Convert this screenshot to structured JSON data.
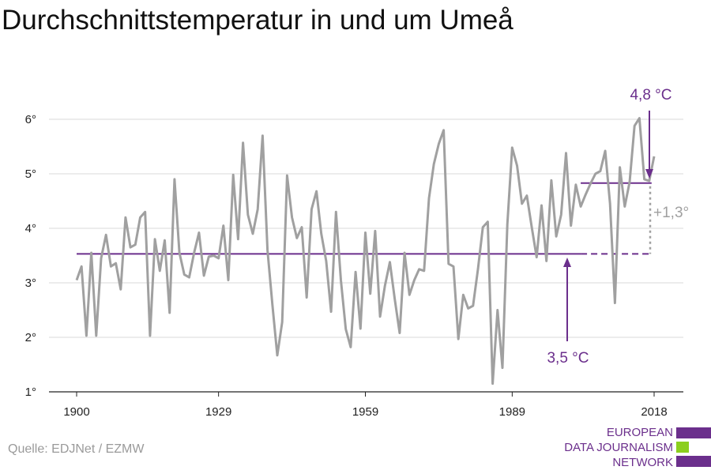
{
  "title": "Durchschnittstemperatur in und um Umeå",
  "source": "Quelle: EDJNet / EZMW",
  "logo": {
    "line1": "EUROPEAN",
    "line2": "DATA JOURNALISM",
    "line3": "NETWORK",
    "purple": "#6b2f8c",
    "green": "#8ccf1e"
  },
  "colors": {
    "series": "#a0a0a0",
    "accent": "#6b2f8c",
    "diff": "#a0a0a0",
    "grid": "#d8d8d8"
  },
  "chart_data": {
    "type": "line",
    "title": "Durchschnittstemperatur in und um Umeå",
    "xlabel": "",
    "ylabel": "",
    "xlim": [
      1900,
      2018
    ],
    "ylim": [
      1,
      6
    ],
    "x_ticks": [
      1900,
      1929,
      1959,
      1989,
      2018
    ],
    "y_ticks": [
      1,
      2,
      3,
      4,
      5,
      6
    ],
    "y_tick_labels": [
      "1°",
      "2°",
      "3°",
      "4°",
      "5°",
      "6°"
    ],
    "grid": "horizontal",
    "x": [
      1900,
      1901,
      1902,
      1903,
      1904,
      1905,
      1906,
      1907,
      1908,
      1909,
      1910,
      1911,
      1912,
      1913,
      1914,
      1915,
      1916,
      1917,
      1918,
      1919,
      1920,
      1921,
      1922,
      1923,
      1924,
      1925,
      1926,
      1927,
      1928,
      1929,
      1930,
      1931,
      1932,
      1933,
      1934,
      1935,
      1936,
      1937,
      1938,
      1939,
      1940,
      1941,
      1942,
      1943,
      1944,
      1945,
      1946,
      1947,
      1948,
      1949,
      1950,
      1951,
      1952,
      1953,
      1954,
      1955,
      1956,
      1957,
      1958,
      1959,
      1960,
      1961,
      1962,
      1963,
      1964,
      1965,
      1966,
      1967,
      1968,
      1969,
      1970,
      1971,
      1972,
      1973,
      1974,
      1975,
      1976,
      1977,
      1978,
      1979,
      1980,
      1981,
      1982,
      1983,
      1984,
      1985,
      1986,
      1987,
      1988,
      1989,
      1990,
      1991,
      1992,
      1993,
      1994,
      1995,
      1996,
      1997,
      1998,
      1999,
      2000,
      2001,
      2002,
      2003,
      2004,
      2005,
      2006,
      2007,
      2008,
      2009,
      2010,
      2011,
      2012,
      2013,
      2014,
      2015,
      2016,
      2017,
      2018
    ],
    "series": [
      {
        "values": [
          3.05,
          3.3,
          2.03,
          3.55,
          2.03,
          3.45,
          3.88,
          3.3,
          3.36,
          2.88,
          4.2,
          3.65,
          3.7,
          4.2,
          4.3,
          2.03,
          3.8,
          3.22,
          3.78,
          2.45,
          4.9,
          3.55,
          3.15,
          3.1,
          3.55,
          3.92,
          3.13,
          3.48,
          3.5,
          3.45,
          4.05,
          3.05,
          4.98,
          3.8,
          5.57,
          4.25,
          3.9,
          4.35,
          5.7,
          3.6,
          2.6,
          1.67,
          2.28,
          4.97,
          4.2,
          3.82,
          4.02,
          2.73,
          4.35,
          4.68,
          3.9,
          3.4,
          2.47,
          4.3,
          3.05,
          2.15,
          1.82,
          3.2,
          2.16,
          3.92,
          2.8,
          3.95,
          2.38,
          2.95,
          3.38,
          2.7,
          2.08,
          3.55,
          2.78,
          3.05,
          3.25,
          3.22,
          4.55,
          5.18,
          5.55,
          5.8,
          3.35,
          3.3,
          1.97,
          2.78,
          2.53,
          2.58,
          3.25,
          4.02,
          4.12,
          1.15,
          2.5,
          1.44,
          4.07,
          5.48,
          5.15,
          4.45,
          4.6,
          4.02,
          3.47,
          4.42,
          3.4,
          4.88,
          3.85,
          4.25,
          5.38,
          4.05,
          4.8,
          4.4,
          4.62,
          4.82,
          5.0,
          5.05,
          5.42,
          4.45,
          2.63,
          5.12,
          4.4,
          4.85,
          5.88,
          6.02,
          4.9,
          4.87,
          5.32
        ]
      }
    ],
    "reference_lines": [
      {
        "label": "3,5 °C",
        "value": 3.53,
        "from": 1900,
        "to": 2018,
        "dashed_from": 2003
      },
      {
        "label": "4,8 °C",
        "value": 4.83,
        "from": 2003,
        "to": 2017
      }
    ],
    "difference_label": "+1,3°"
  }
}
